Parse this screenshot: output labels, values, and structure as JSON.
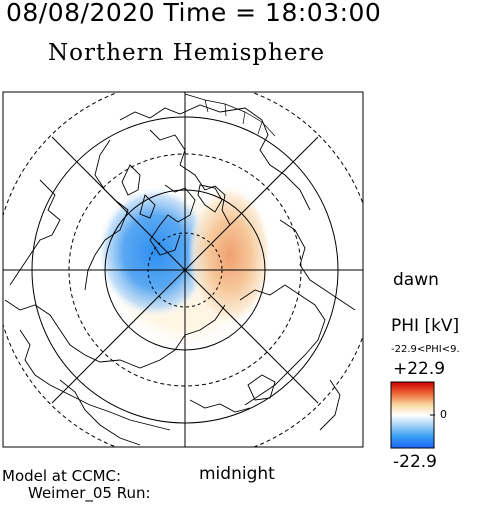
{
  "header": {
    "timestamp": "08/08/2020 Time = 18:03:00",
    "hemisphere": "Northern Hemisphere"
  },
  "map": {
    "dawn_label": "dawn",
    "midnight_label": "midnight",
    "pattern": "two-cell polar cap potential",
    "dusk_cell_color": "#4da3ef",
    "dawn_cell_color": "#f2b07f",
    "coastline_color": "#000000"
  },
  "colorbar": {
    "quantity_label": "PHI [kV]",
    "range_text": "-22.9<PHI<9.",
    "max_label": "+22.9",
    "zero_label": "0",
    "min_label": "-22.9",
    "max_value": 22.9,
    "min_value": -22.9,
    "color_top": "#cc0000",
    "color_mid": "#ffffff",
    "color_bottom": "#1a66ff"
  },
  "footer": {
    "model_label": "Model at CCMC:",
    "run_label": "Weimer_05 Run:"
  }
}
